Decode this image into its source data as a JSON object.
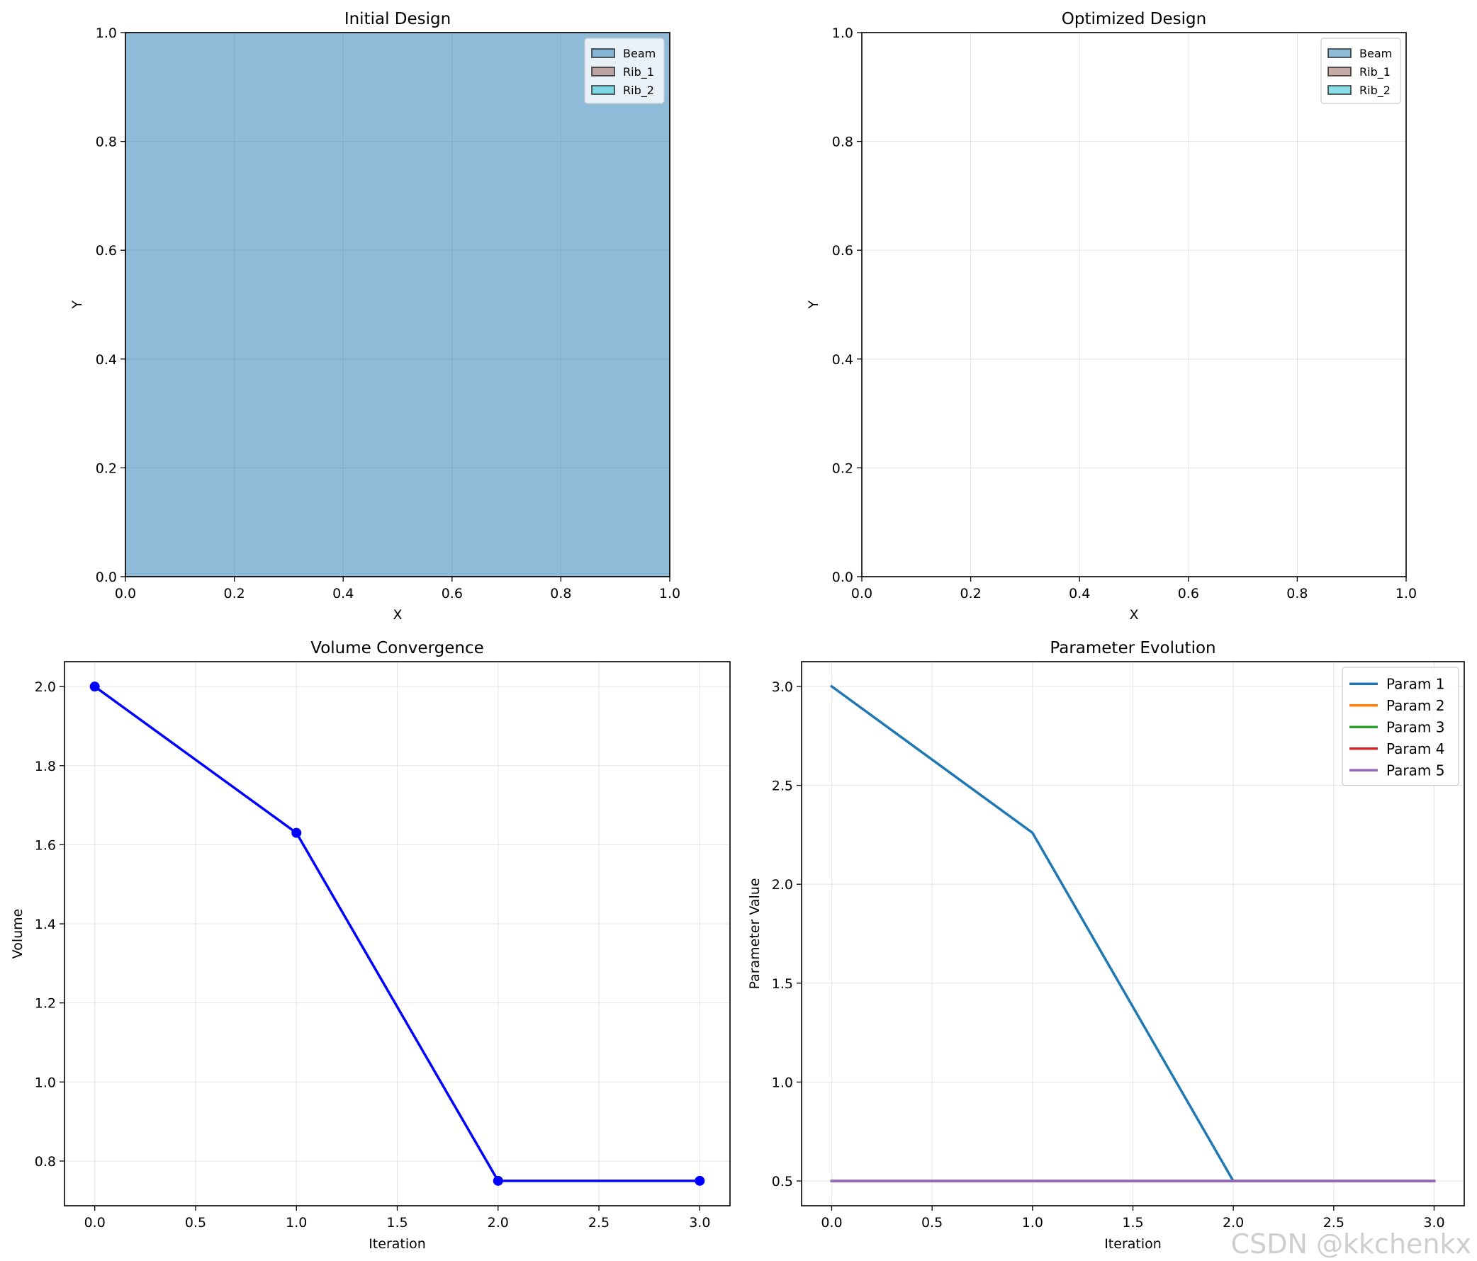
{
  "watermark": "CSDN @kkchenkx",
  "chart_data": [
    {
      "id": "initial",
      "type": "area",
      "title": "Initial Design",
      "xlabel": "X",
      "ylabel": "Y",
      "xlim": [
        0,
        1
      ],
      "ylim": [
        0,
        1
      ],
      "xticks": [
        0,
        0.2,
        0.4,
        0.6,
        0.8,
        1.0
      ],
      "yticks": [
        0,
        0.2,
        0.4,
        0.6,
        0.8,
        1.0
      ],
      "tick_decimals": 1,
      "grid": true,
      "legend": {
        "placement": "top-right",
        "entries": [
          {
            "label": "Beam",
            "color": "#1f77b4"
          },
          {
            "label": "Rib_1",
            "color": "#8c564b"
          },
          {
            "label": "Rib_2",
            "color": "#17becf"
          }
        ]
      },
      "regions": [
        {
          "name": "Beam",
          "color": "#1f77b4",
          "alpha": 0.5,
          "x": [
            0,
            1
          ],
          "y": [
            0,
            1
          ]
        }
      ]
    },
    {
      "id": "optimized",
      "type": "area",
      "title": "Optimized Design",
      "xlabel": "X",
      "ylabel": "Y",
      "xlim": [
        0,
        1
      ],
      "ylim": [
        0,
        1
      ],
      "xticks": [
        0,
        0.2,
        0.4,
        0.6,
        0.8,
        1.0
      ],
      "yticks": [
        0,
        0.2,
        0.4,
        0.6,
        0.8,
        1.0
      ],
      "tick_decimals": 1,
      "grid": true,
      "legend": {
        "placement": "top-right",
        "entries": [
          {
            "label": "Beam",
            "color": "#1f77b4"
          },
          {
            "label": "Rib_1",
            "color": "#8c564b"
          },
          {
            "label": "Rib_2",
            "color": "#17becf"
          }
        ]
      },
      "regions": []
    },
    {
      "id": "volume",
      "type": "line",
      "title": "Volume Convergence",
      "xlabel": "Iteration",
      "ylabel": "Volume",
      "xlim": [
        -0.15,
        3.15
      ],
      "ylim": [
        0.687,
        2.063
      ],
      "xticks": [
        0,
        0.5,
        1.0,
        1.5,
        2.0,
        2.5,
        3.0
      ],
      "yticks": [
        0.8,
        1.0,
        1.2,
        1.4,
        1.6,
        1.8,
        2.0
      ],
      "tick_decimals": 1,
      "grid": true,
      "series": [
        {
          "color": "#0000ff",
          "markers": true,
          "x": [
            0,
            1,
            2,
            3
          ],
          "y": [
            2.0,
            1.63,
            0.75,
            0.75
          ]
        }
      ]
    },
    {
      "id": "params",
      "type": "line",
      "title": "Parameter Evolution",
      "xlabel": "Iteration",
      "ylabel": "Parameter Value",
      "xlim": [
        -0.15,
        3.15
      ],
      "ylim": [
        0.375,
        3.125
      ],
      "xticks": [
        0,
        0.5,
        1.0,
        1.5,
        2.0,
        2.5,
        3.0
      ],
      "yticks": [
        0.5,
        1.0,
        1.5,
        2.0,
        2.5,
        3.0
      ],
      "tick_decimals": 1,
      "grid": true,
      "legend": {
        "placement": "top-right",
        "entries": [
          {
            "label": "Param 1",
            "color": "#1f77b4"
          },
          {
            "label": "Param 2",
            "color": "#ff7f0e"
          },
          {
            "label": "Param 3",
            "color": "#2ca02c"
          },
          {
            "label": "Param 4",
            "color": "#d62728"
          },
          {
            "label": "Param 5",
            "color": "#9467bd"
          }
        ]
      },
      "series": [
        {
          "name": "Param 1",
          "color": "#1f77b4",
          "markers": false,
          "x": [
            0,
            1,
            2,
            3
          ],
          "y": [
            3.0,
            2.26,
            0.5,
            0.5
          ]
        },
        {
          "name": "Param 2",
          "color": "#ff7f0e",
          "markers": false,
          "x": [
            0,
            1,
            2,
            3
          ],
          "y": [
            0.5,
            0.5,
            0.5,
            0.5
          ]
        },
        {
          "name": "Param 3",
          "color": "#2ca02c",
          "markers": false,
          "x": [
            0,
            1,
            2,
            3
          ],
          "y": [
            0.5,
            0.5,
            0.5,
            0.5
          ]
        },
        {
          "name": "Param 4",
          "color": "#d62728",
          "markers": false,
          "x": [
            0,
            1,
            2,
            3
          ],
          "y": [
            0.5,
            0.5,
            0.5,
            0.5
          ]
        },
        {
          "name": "Param 5",
          "color": "#9467bd",
          "markers": false,
          "x": [
            0,
            1,
            2,
            3
          ],
          "y": [
            0.5,
            0.5,
            0.5,
            0.5
          ]
        }
      ]
    }
  ]
}
